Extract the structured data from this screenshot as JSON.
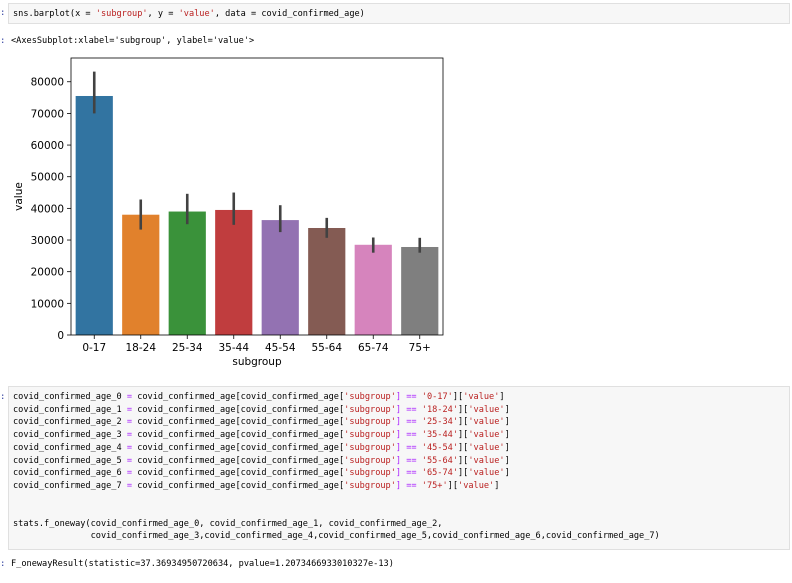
{
  "cell1": {
    "prompt": ":",
    "code": {
      "prefix": "sns.barplot(x = ",
      "s1": "'subgroup'",
      "mid1": ", y = ",
      "s2": "'value'",
      "mid2": ", data = covid_confirmed_age)"
    }
  },
  "out1": {
    "prompt": ":",
    "text": "<AxesSubplot:xlabel='subgroup', ylabel='value'>"
  },
  "chart_data": {
    "type": "bar",
    "categories": [
      "0-17",
      "18-24",
      "25-34",
      "35-44",
      "45-54",
      "55-64",
      "65-74",
      "75+"
    ],
    "values": [
      75500,
      38000,
      39000,
      39500,
      36300,
      33800,
      28500,
      27800
    ],
    "ci_low": [
      70000,
      33300,
      35000,
      34800,
      32500,
      30700,
      26000,
      26000
    ],
    "ci_high": [
      83200,
      42800,
      44600,
      45000,
      41000,
      37000,
      30800,
      30700
    ],
    "colors": [
      "#3274a1",
      "#e1812c",
      "#3a923a",
      "#c03d3e",
      "#9372b2",
      "#845b53",
      "#d684bd",
      "#7f7f7f"
    ],
    "yticks": [
      0,
      10000,
      20000,
      30000,
      40000,
      50000,
      60000,
      70000,
      80000
    ],
    "ytick_labels": [
      "0",
      "10000",
      "20000",
      "30000",
      "40000",
      "50000",
      "60000",
      "70000",
      "80000"
    ],
    "xlabel": "subgroup",
    "ylabel": "value",
    "ylim": [
      0,
      87500
    ],
    "grid": false
  },
  "cell2": {
    "prompt": ":",
    "assign_lines": [
      {
        "lhs": "covid_confirmed_age_0",
        "key": "'0-17'"
      },
      {
        "lhs": "covid_confirmed_age_1",
        "key": "'18-24'"
      },
      {
        "lhs": "covid_confirmed_age_2",
        "key": "'25-34'"
      },
      {
        "lhs": "covid_confirmed_age_3",
        "key": "'35-44'"
      },
      {
        "lhs": "covid_confirmed_age_4",
        "key": "'45-54'"
      },
      {
        "lhs": "covid_confirmed_age_5",
        "key": "'55-64'"
      },
      {
        "lhs": "covid_confirmed_age_6",
        "key": "'65-74'"
      },
      {
        "lhs": "covid_confirmed_age_7",
        "key": "'75+'"
      }
    ],
    "assign_pieces": {
      "eq": " = ",
      "rhs_a": "covid_confirmed_age[covid_confirmed_age[",
      "col": "'subgroup'",
      "rhs_b": "] == ",
      "rhs_c": "][",
      "val": "'value'",
      "rhs_d": "]"
    },
    "fn_line1": "stats.f_oneway(covid_confirmed_age_0, covid_confirmed_age_1, covid_confirmed_age_2,",
    "fn_line2": "               covid_confirmed_age_3,covid_confirmed_age_4,covid_confirmed_age_5,covid_confirmed_age_6,covid_confirmed_age_7)"
  },
  "out2": {
    "prompt": ":",
    "text": "F_onewayResult(statistic=37.36934950720634, pvalue=1.2073466933010327e-13)"
  }
}
